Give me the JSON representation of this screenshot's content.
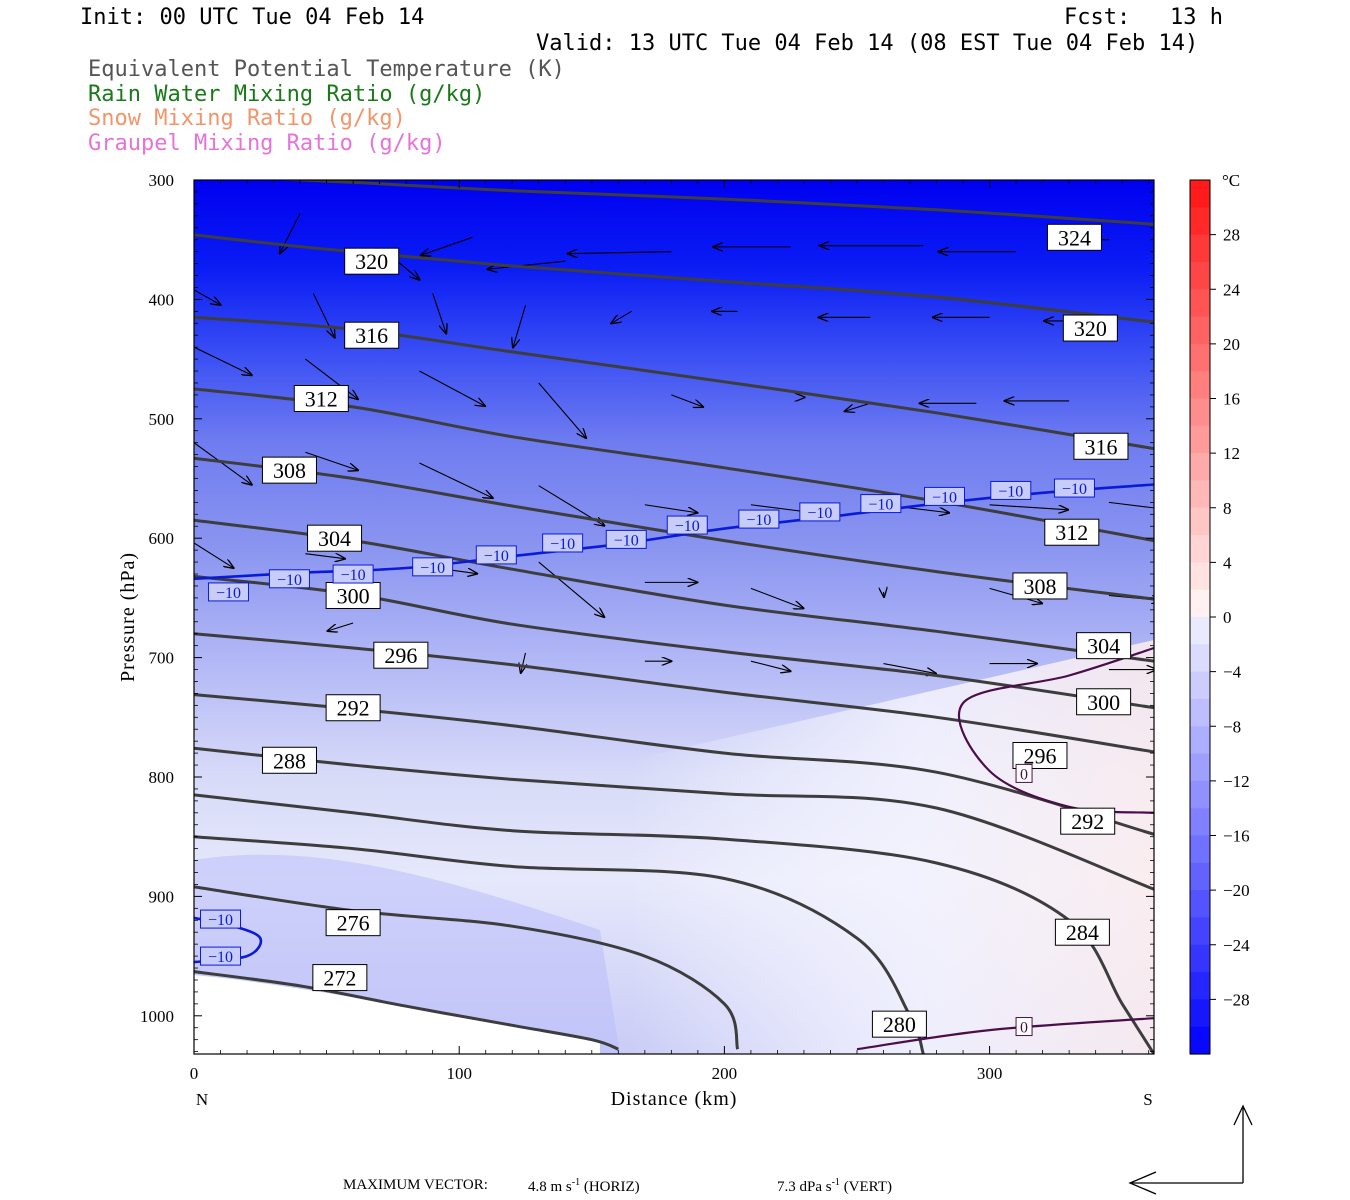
{
  "header": {
    "init": "Init: 00 UTC Tue 04 Feb 14",
    "fcst": "Fcst:   13 h",
    "valid": "Valid: 13 UTC Tue 04 Feb 14 (08 EST Tue 04 Feb 14)"
  },
  "legend": [
    {
      "label": "Equivalent Potential Temperature (K)",
      "color": "#555555"
    },
    {
      "label": "Rain Water Mixing Ratio (g/kg)",
      "color": "#1a7a1a"
    },
    {
      "label": "Snow Mixing Ratio (g/kg)",
      "color": "#f2956a"
    },
    {
      "label": "Graupel Mixing Ratio (g/kg)",
      "color": "#e673d9"
    }
  ],
  "footer": {
    "max_vector_label": "MAXIMUM VECTOR:",
    "horiz_value": "4.8 m s",
    "horiz_unit_suffix": " (HORIZ)",
    "vert_value": "7.3 dPa s",
    "vert_unit_suffix": " (VERT)",
    "exponent": "-1"
  },
  "chart_data": {
    "type": "cross-section",
    "xlabel": "Distance (km)",
    "ylabel": "Pressure (hPa)",
    "x_end_labels": [
      "N",
      "S"
    ],
    "xlim": [
      0,
      362
    ],
    "x_ticks": [
      0,
      100,
      200,
      300
    ],
    "ylim": [
      1032,
      300
    ],
    "y_ticks": [
      300,
      400,
      500,
      600,
      700,
      800,
      900,
      1000
    ],
    "colorbar": {
      "unit": "°C",
      "tick_labels": [
        28,
        24,
        20,
        16,
        12,
        8,
        4,
        0,
        -4,
        -8,
        -12,
        -16,
        -20,
        -24,
        -28
      ],
      "range": [
        -32,
        32
      ]
    },
    "theta_e_contours": [
      {
        "value": 324,
        "points": [
          [
            0,
            296
          ],
          [
            60,
            302
          ],
          [
            120,
            309
          ],
          [
            200,
            316
          ],
          [
            280,
            325
          ],
          [
            362,
            337
          ]
        ],
        "labels": [
          [
            332,
            348
          ]
        ]
      },
      {
        "value": 320,
        "points": [
          [
            0,
            346
          ],
          [
            50,
            358
          ],
          [
            120,
            372
          ],
          [
            200,
            385
          ],
          [
            280,
            398
          ],
          [
            362,
            419
          ]
        ],
        "labels": [
          [
            67,
            368
          ],
          [
            338,
            424
          ]
        ]
      },
      {
        "value": 316,
        "points": [
          [
            0,
            415
          ],
          [
            60,
            425
          ],
          [
            120,
            444
          ],
          [
            200,
            469
          ],
          [
            280,
            495
          ],
          [
            362,
            525
          ]
        ],
        "labels": [
          [
            67,
            430
          ],
          [
            342,
            523
          ]
        ]
      },
      {
        "value": 312,
        "points": [
          [
            0,
            475
          ],
          [
            60,
            490
          ],
          [
            120,
            515
          ],
          [
            200,
            541
          ],
          [
            280,
            569
          ],
          [
            362,
            602
          ]
        ],
        "labels": [
          [
            48,
            483
          ],
          [
            331,
            595
          ]
        ]
      },
      {
        "value": 308,
        "points": [
          [
            0,
            533
          ],
          [
            60,
            550
          ],
          [
            120,
            573
          ],
          [
            200,
            602
          ],
          [
            280,
            628
          ],
          [
            362,
            651
          ]
        ],
        "labels": [
          [
            36,
            543
          ],
          [
            319,
            640
          ]
        ]
      },
      {
        "value": 304,
        "points": [
          [
            0,
            585
          ],
          [
            60,
            602
          ],
          [
            120,
            626
          ],
          [
            200,
            656
          ],
          [
            280,
            678
          ],
          [
            362,
            703
          ]
        ],
        "labels": [
          [
            53,
            600
          ],
          [
            343,
            690
          ]
        ]
      },
      {
        "value": 300,
        "points": [
          [
            0,
            632
          ],
          [
            60,
            647
          ],
          [
            120,
            672
          ],
          [
            200,
            695
          ],
          [
            280,
            715
          ],
          [
            362,
            742
          ]
        ],
        "labels": [
          [
            60,
            648
          ],
          [
            343,
            737
          ]
        ]
      },
      {
        "value": 296,
        "points": [
          [
            0,
            680
          ],
          [
            60,
            692
          ],
          [
            120,
            706
          ],
          [
            200,
            729
          ],
          [
            280,
            750
          ],
          [
            362,
            779
          ]
        ],
        "labels": [
          [
            78,
            698
          ],
          [
            319,
            782
          ]
        ]
      },
      {
        "value": 292,
        "points": [
          [
            0,
            731
          ],
          [
            60,
            743
          ],
          [
            120,
            757
          ],
          [
            200,
            780
          ],
          [
            280,
            796
          ],
          [
            362,
            848
          ]
        ],
        "labels": [
          [
            60,
            742
          ],
          [
            337,
            837
          ]
        ]
      },
      {
        "value": 288,
        "points": [
          [
            0,
            776
          ],
          [
            60,
            790
          ],
          [
            120,
            802
          ],
          [
            200,
            814
          ],
          [
            280,
            826
          ],
          [
            362,
            894
          ]
        ],
        "labels": [
          [
            36,
            786
          ]
        ]
      },
      {
        "value": 284,
        "points": [
          [
            0,
            815
          ],
          [
            60,
            830
          ],
          [
            120,
            845
          ],
          [
            200,
            852
          ],
          [
            280,
            872
          ],
          [
            330,
            920
          ],
          [
            350,
            990
          ],
          [
            362,
            1032
          ]
        ],
        "labels": [
          [
            335,
            930
          ]
        ]
      },
      {
        "value": 280,
        "points": [
          [
            0,
            850
          ],
          [
            60,
            860
          ],
          [
            120,
            875
          ],
          [
            200,
            885
          ],
          [
            250,
            935
          ],
          [
            270,
            1000
          ],
          [
            275,
            1032
          ]
        ],
        "labels": [
          [
            266,
            1007
          ]
        ]
      },
      {
        "value": 276,
        "points": [
          [
            0,
            892
          ],
          [
            60,
            912
          ],
          [
            120,
            925
          ],
          [
            170,
            950
          ],
          [
            200,
            990
          ],
          [
            205,
            1028
          ]
        ],
        "labels": [
          [
            60,
            922
          ]
        ]
      },
      {
        "value": 272,
        "points": [
          [
            0,
            963
          ],
          [
            40,
            975
          ],
          [
            80,
            992
          ],
          [
            120,
            1008
          ],
          [
            150,
            1020
          ],
          [
            160,
            1028
          ]
        ],
        "labels": [
          [
            55,
            968
          ]
        ]
      }
    ],
    "temp_contours": [
      {
        "value": -10,
        "points": [
          [
            0,
            634
          ],
          [
            40,
            629
          ],
          [
            80,
            625
          ],
          [
            120,
            615
          ],
          [
            160,
            605
          ],
          [
            200,
            592
          ],
          [
            240,
            582
          ],
          [
            280,
            571
          ],
          [
            320,
            562
          ],
          [
            362,
            555
          ]
        ],
        "labels": [
          [
            13,
            645
          ],
          [
            36,
            634
          ],
          [
            60,
            630
          ],
          [
            90,
            624
          ],
          [
            114,
            614
          ],
          [
            139,
            604
          ],
          [
            163,
            601
          ],
          [
            186,
            589
          ],
          [
            213,
            584
          ],
          [
            236,
            578
          ],
          [
            259,
            571
          ],
          [
            283,
            565
          ],
          [
            308,
            560
          ],
          [
            332,
            558
          ]
        ]
      },
      {
        "value": -10,
        "points": [
          [
            0,
            918
          ],
          [
            15,
            925
          ],
          [
            25,
            935
          ],
          [
            20,
            950
          ],
          [
            0,
            955
          ]
        ],
        "labels": [
          [
            10,
            919
          ],
          [
            10,
            950
          ]
        ]
      },
      {
        "value": 0,
        "points": [
          [
            362,
            692
          ],
          [
            330,
            715
          ],
          [
            290,
            738
          ],
          [
            300,
            795
          ],
          [
            330,
            825
          ],
          [
            362,
            830
          ]
        ],
        "labels": [
          [
            313,
            797
          ]
        ]
      },
      {
        "value": 0,
        "points": [
          [
            250,
            1028
          ],
          [
            300,
            1012
          ],
          [
            362,
            1002
          ]
        ],
        "labels": [
          [
            313,
            1009
          ]
        ]
      }
    ],
    "wind_vectors": [
      [
        40,
        328,
        -8,
        -40
      ],
      [
        75,
        365,
        10,
        -22
      ],
      [
        105,
        348,
        -20,
        -18
      ],
      [
        140,
        368,
        -30,
        -8
      ],
      [
        180,
        360,
        -40,
        -2
      ],
      [
        225,
        356,
        -30,
        0
      ],
      [
        275,
        355,
        -40,
        0
      ],
      [
        310,
        360,
        -30,
        0
      ],
      [
        345,
        350,
        -20,
        0
      ],
      [
        0,
        392,
        10,
        -15
      ],
      [
        45,
        395,
        8,
        -44
      ],
      [
        90,
        395,
        5,
        -40
      ],
      [
        125,
        405,
        -5,
        -42
      ],
      [
        165,
        410,
        -8,
        -12
      ],
      [
        205,
        410,
        -10,
        0
      ],
      [
        255,
        415,
        -20,
        0
      ],
      [
        300,
        415,
        -22,
        0
      ],
      [
        340,
        418,
        -20,
        0
      ],
      [
        0,
        440,
        22,
        -28
      ],
      [
        42,
        450,
        20,
        -40
      ],
      [
        85,
        460,
        25,
        -35
      ],
      [
        130,
        470,
        18,
        -55
      ],
      [
        180,
        480,
        12,
        -12
      ],
      [
        230,
        482,
        0,
        0
      ],
      [
        255,
        487,
        -10,
        -8
      ],
      [
        295,
        487,
        -22,
        0
      ],
      [
        330,
        485,
        -25,
        0
      ],
      [
        0,
        520,
        22,
        -42
      ],
      [
        42,
        528,
        20,
        -18
      ],
      [
        85,
        537,
        28,
        -35
      ],
      [
        130,
        556,
        25,
        -40
      ],
      [
        170,
        572,
        20,
        -8
      ],
      [
        210,
        572,
        30,
        -10
      ],
      [
        260,
        572,
        25,
        -8
      ],
      [
        300,
        572,
        30,
        -5
      ],
      [
        345,
        570,
        25,
        -8
      ],
      [
        0,
        604,
        15,
        -25
      ],
      [
        42,
        613,
        15,
        -5
      ],
      [
        85,
        623,
        22,
        -8
      ],
      [
        130,
        620,
        25,
        -55
      ],
      [
        170,
        637,
        20,
        0
      ],
      [
        210,
        642,
        20,
        -20
      ],
      [
        260,
        645,
        0,
        -5
      ],
      [
        300,
        642,
        20,
        -15
      ],
      [
        345,
        648,
        20,
        -5
      ],
      [
        0,
        661,
        -15,
        -8
      ],
      [
        60,
        671,
        -10,
        -8
      ],
      [
        125,
        696,
        -2,
        -20
      ],
      [
        170,
        703,
        10,
        0
      ],
      [
        210,
        703,
        15,
        -10
      ],
      [
        260,
        705,
        20,
        -10
      ],
      [
        300,
        705,
        18,
        0
      ],
      [
        345,
        710,
        18,
        0
      ]
    ]
  }
}
